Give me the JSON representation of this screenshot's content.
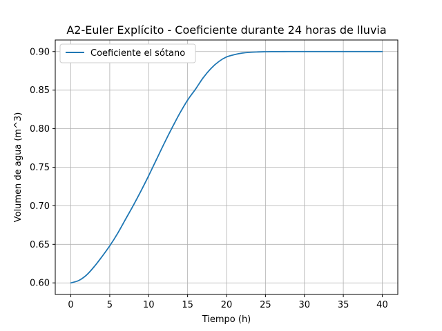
{
  "colors": {
    "series": "#1f77b4",
    "grid": "#b0b0b0",
    "axes": "#000000",
    "background": "#ffffff",
    "legend_border": "#cccccc"
  },
  "chart_data": {
    "type": "line",
    "title": "A2-Euler Explícito - Coeficiente durante 24 horas de lluvia",
    "xlabel": "Tiempo (h)",
    "ylabel": "Volumen de agua (m^3)",
    "xlim": [
      -2,
      42
    ],
    "ylim": [
      0.585,
      0.915
    ],
    "xticks": [
      0,
      5,
      10,
      15,
      20,
      25,
      30,
      35,
      40
    ],
    "yticks": [
      0.6,
      0.65,
      0.7,
      0.75,
      0.8,
      0.85,
      0.9
    ],
    "xtick_labels": [
      "0",
      "5",
      "10",
      "15",
      "20",
      "25",
      "30",
      "35",
      "40"
    ],
    "ytick_labels": [
      "0.60",
      "0.65",
      "0.70",
      "0.75",
      "0.80",
      "0.85",
      "0.90"
    ],
    "grid": true,
    "legend_position": "upper-left",
    "series": [
      {
        "name": "Coeficiente el sótano",
        "color": "#1f77b4",
        "x": [
          0,
          1,
          2,
          3,
          4,
          5,
          6,
          7,
          8,
          9,
          10,
          11,
          12,
          13,
          14,
          15,
          16,
          17,
          18,
          19,
          20,
          21,
          22,
          23,
          24,
          25,
          26,
          28,
          30,
          32,
          35,
          38,
          40
        ],
        "y": [
          0.6,
          0.603,
          0.61,
          0.621,
          0.634,
          0.648,
          0.664,
          0.682,
          0.7,
          0.719,
          0.739,
          0.76,
          0.781,
          0.801,
          0.82,
          0.837,
          0.851,
          0.866,
          0.878,
          0.887,
          0.893,
          0.896,
          0.898,
          0.899,
          0.8995,
          0.8998,
          0.8999,
          0.9,
          0.9,
          0.9,
          0.9,
          0.9,
          0.9
        ]
      }
    ]
  }
}
